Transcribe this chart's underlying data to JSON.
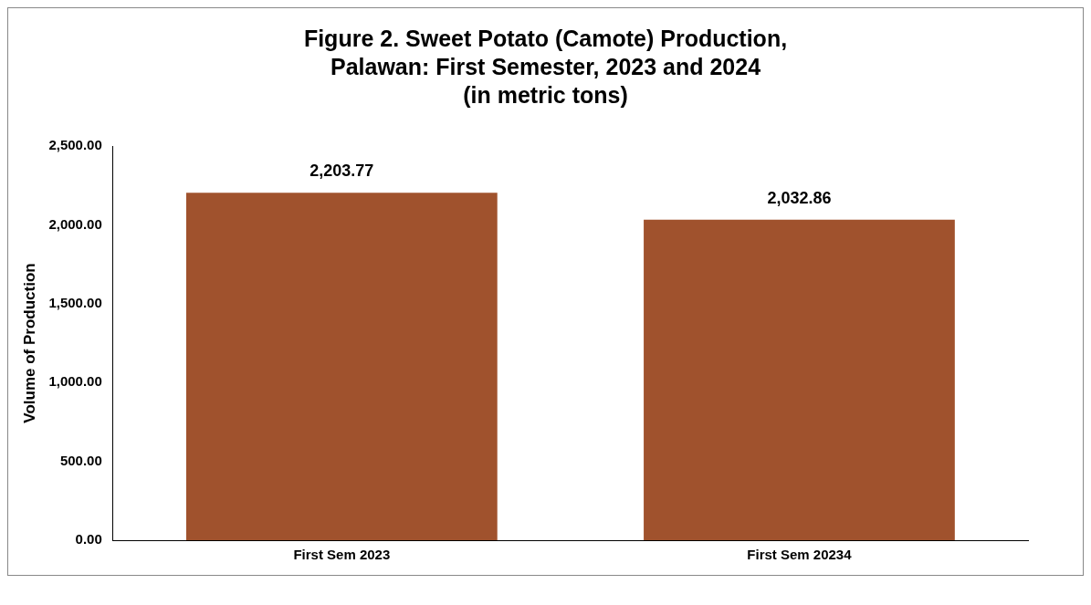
{
  "chart_data": {
    "type": "bar",
    "title": "Figure 2. Sweet Potato (Camote) Production, Palawan: First Semester, 2023 and 2024",
    "subtitle": "(in metric tons)",
    "ylabel": "Volume of Production",
    "categories": [
      "First Sem 2023",
      "First Sem 20234"
    ],
    "series": [
      {
        "color": "#a0522d",
        "values": [
          2203.77,
          2032.86
        ],
        "value_labels": [
          "2,203.77",
          "2,032.86"
        ]
      }
    ],
    "ylim": [
      0,
      2500
    ],
    "yticks": [
      {
        "value": 0,
        "label": "0.00"
      },
      {
        "value": 500,
        "label": "500.00"
      },
      {
        "value": 1000,
        "label": "1,000.00"
      },
      {
        "value": 1500,
        "label": "1,500.00"
      },
      {
        "value": 2000,
        "label": "2,000.00"
      },
      {
        "value": 2500,
        "label": "2,500.00"
      }
    ],
    "grid": false,
    "legend": false
  }
}
